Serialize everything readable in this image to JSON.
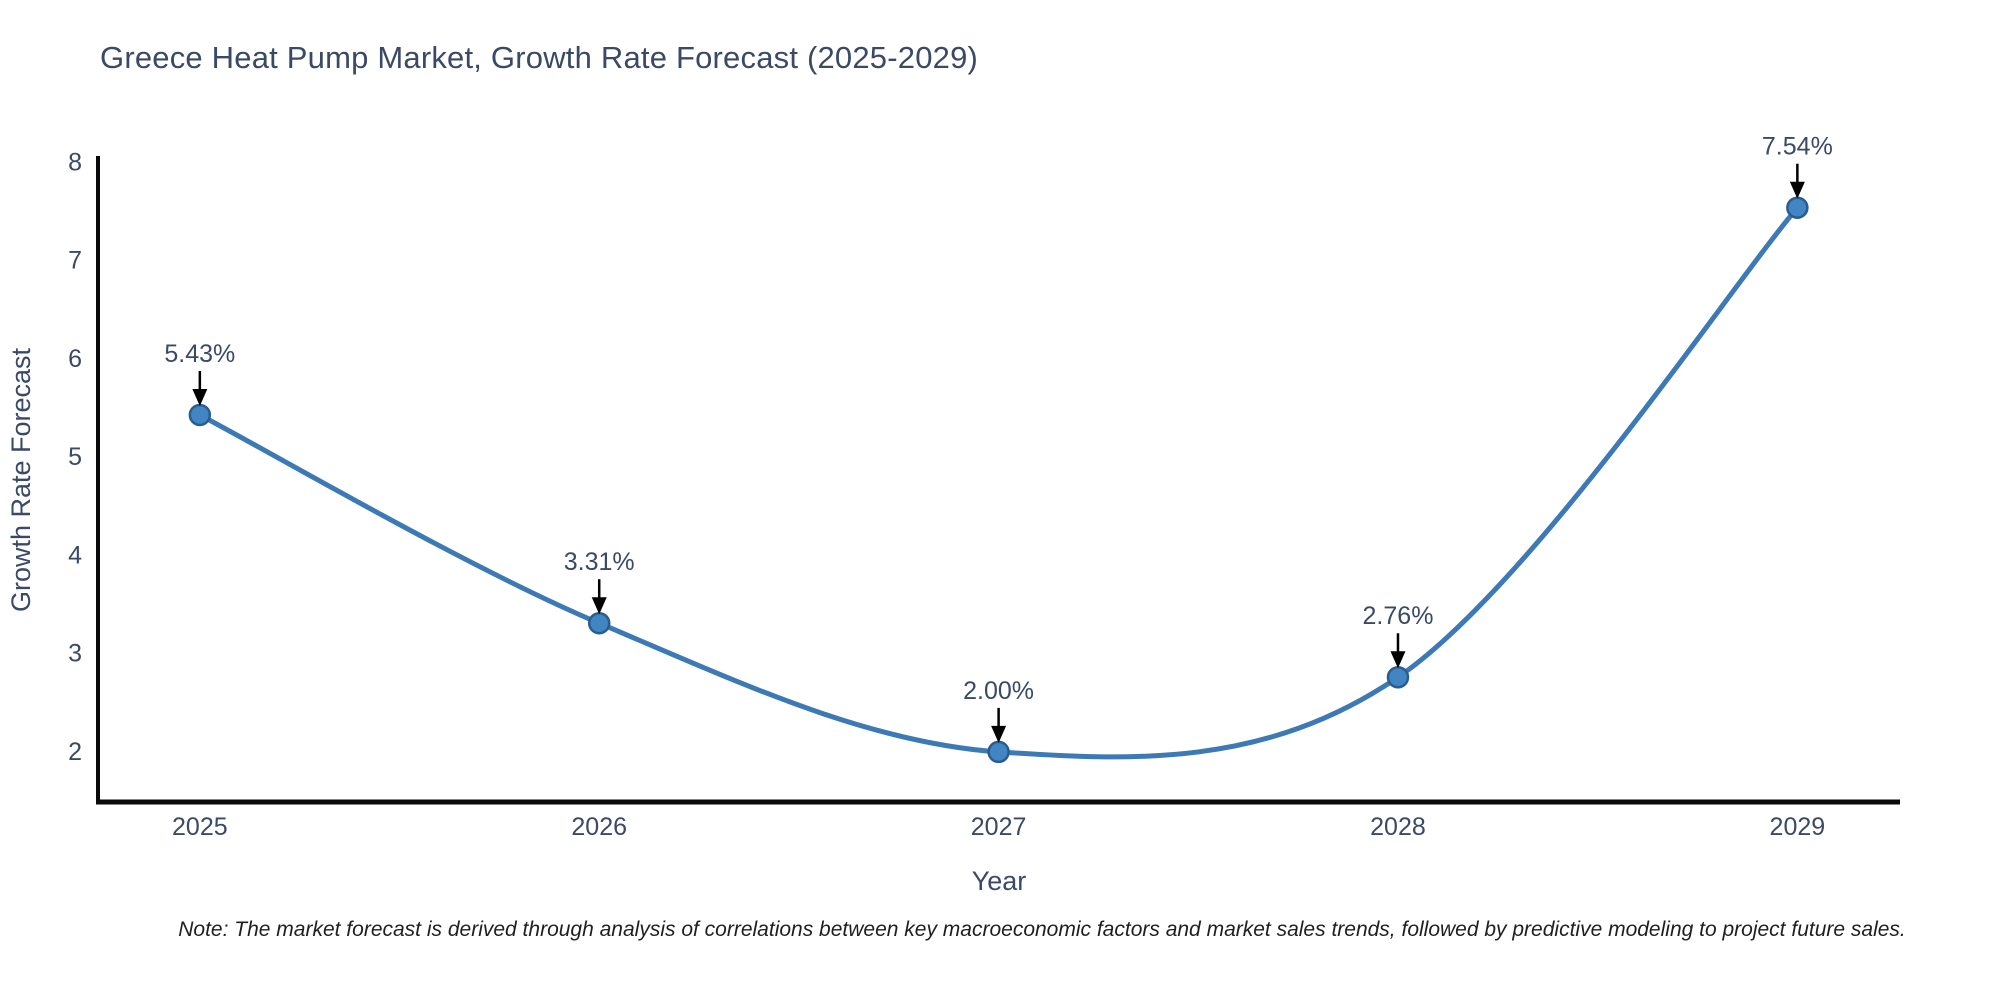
{
  "header": {
    "title": "Greece Heat Pump Market, Growth Rate Forecast (2025-2029)"
  },
  "chart_data": {
    "type": "line",
    "title": "Greece Heat Pump Market, Growth Rate Forecast (2025-2029)",
    "x": [
      2025,
      2026,
      2027,
      2028,
      2029
    ],
    "values": [
      5.43,
      3.31,
      2.0,
      2.76,
      7.54
    ],
    "point_labels": [
      "5.43%",
      "3.31%",
      "2.00%",
      "2.76%",
      "7.54%"
    ],
    "xlabel": "Year",
    "ylabel": "Growth Rate Forecast",
    "xticks": [
      "2025",
      "2026",
      "2027",
      "2028",
      "2029"
    ],
    "xtick_values": [
      2025,
      2026,
      2027,
      2028,
      2029
    ],
    "yticks": [
      "2",
      "3",
      "4",
      "5",
      "6",
      "7",
      "8"
    ],
    "ytick_values": [
      2,
      3,
      4,
      5,
      6,
      7,
      8
    ],
    "x_range": [
      2024.745,
      2029.257
    ],
    "y_range": [
      1.49,
      8.046
    ],
    "grid": false,
    "legend": "none",
    "line_shape": "spline",
    "colors": {
      "line": "#3d7ab5",
      "marker_fill": "#4285c3",
      "marker_edge": "#2a5d8f",
      "text": "#3a4a66",
      "spine": "#0a0a0a",
      "arrow": "#000000",
      "note": "#1f1f1f"
    }
  },
  "note": {
    "text": "Note: The market forecast is derived through analysis of correlations between key macroeconomic factors and market sales trends, followed by predictive modeling to project future sales."
  }
}
